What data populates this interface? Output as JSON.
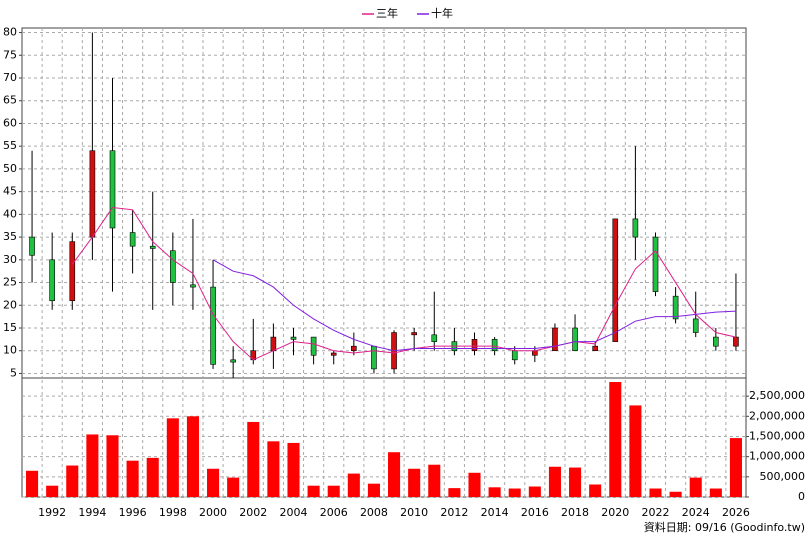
{
  "chart_data": {
    "type": "candlestick",
    "categories": [
      null,
      "1992",
      null,
      "1994",
      null,
      "1996",
      null,
      "1998",
      null,
      "2000",
      null,
      "2002",
      null,
      "2004",
      null,
      "2006",
      null,
      "2008",
      null,
      "2010",
      null,
      "2012",
      null,
      "2014",
      null,
      "2016",
      null,
      "2018",
      null,
      "2020",
      null,
      "2022",
      null,
      "2024",
      null,
      "2026"
    ],
    "open": [
      35,
      30,
      21,
      35,
      54,
      36,
      33,
      32,
      24.5,
      24,
      8,
      8,
      10,
      13,
      13,
      9,
      10,
      11,
      6,
      13.5,
      13.5,
      12,
      10,
      12.5,
      10,
      9,
      10,
      15,
      10,
      12,
      39,
      35,
      22,
      17,
      13,
      11
    ],
    "high": [
      54,
      36,
      36,
      80,
      70,
      41,
      45,
      36,
      39,
      30,
      11,
      17,
      16,
      15,
      13,
      10,
      14,
      11,
      14.5,
      15,
      23,
      15,
      14,
      13,
      11,
      11,
      16,
      18,
      12,
      39,
      55,
      36,
      24,
      23,
      15,
      27
    ],
    "low": [
      25,
      19,
      19,
      30,
      23,
      27,
      19,
      20,
      19,
      6,
      4,
      7,
      6,
      9,
      7,
      7,
      9,
      5,
      5,
      10,
      10,
      9,
      9,
      9,
      7,
      7.5,
      10,
      10,
      10,
      12,
      30,
      22,
      16,
      13,
      10,
      10
    ],
    "close": [
      31,
      21,
      34,
      54,
      37,
      33,
      32.5,
      25,
      24,
      7,
      7.5,
      10,
      13,
      12.5,
      9,
      9.5,
      11,
      6,
      14,
      14,
      12,
      10,
      12.5,
      10,
      8,
      10,
      15,
      10,
      11,
      39,
      35,
      23,
      17,
      14,
      11,
      13
    ],
    "up_color": "#d01010",
    "down_color": "#20c040",
    "series": [
      {
        "name": "三年",
        "color": "#e0208a",
        "values": [
          null,
          null,
          29,
          35,
          41.5,
          41,
          34,
          30,
          27,
          18,
          12,
          8,
          10,
          12,
          11.5,
          10,
          9.5,
          10,
          9.5,
          10.5,
          11,
          11,
          11,
          11,
          10,
          10,
          11,
          12,
          11.5,
          20,
          28,
          32,
          25,
          18,
          14,
          13
        ]
      },
      {
        "name": "十年",
        "color": "#8020e0",
        "values": [
          null,
          null,
          null,
          null,
          null,
          null,
          null,
          null,
          null,
          30,
          27.5,
          26.5,
          24,
          20,
          17,
          14.5,
          12.5,
          11,
          10,
          10.5,
          10.5,
          10.5,
          10.5,
          10.5,
          10.5,
          10.5,
          11,
          12,
          12,
          14,
          16.5,
          17.5,
          17.5,
          18,
          18.5,
          18.7
        ]
      }
    ],
    "ylim": [
      4,
      81
    ],
    "yticks": [
      5,
      10,
      15,
      20,
      25,
      30,
      35,
      40,
      45,
      50,
      55,
      60,
      65,
      70,
      75,
      80
    ],
    "grid": true,
    "volume": {
      "color": "#ff0000",
      "values": [
        650000,
        280000,
        780000,
        1550000,
        1530000,
        900000,
        970000,
        1950000,
        2000000,
        700000,
        480000,
        1860000,
        1380000,
        1340000,
        280000,
        280000,
        580000,
        330000,
        1110000,
        700000,
        800000,
        220000,
        600000,
        240000,
        210000,
        260000,
        750000,
        730000,
        310000,
        2850000,
        2270000,
        210000,
        130000,
        480000,
        210000,
        1460000
      ],
      "ylim": [
        0,
        2900000
      ],
      "yticks": [
        0,
        {
          "value": 500000,
          "label": "500,000"
        },
        {
          "value": 1000000,
          "label": "1,000,000"
        },
        {
          "value": 1500000,
          "label": "1,500,000"
        },
        {
          "value": 2000000,
          "label": "2,000,000"
        },
        {
          "value": 2500000,
          "label": "2,500,000"
        }
      ]
    },
    "footnote": "資料日期: 09/16  (Goodinfo.tw)"
  }
}
